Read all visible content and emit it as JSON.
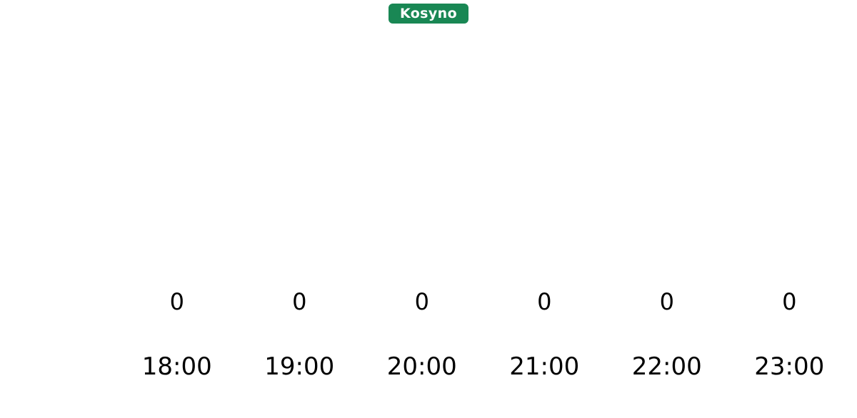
{
  "page": {
    "background": "#ffffff"
  },
  "legend": {
    "label": "Kosyno",
    "bg_color": "#198754",
    "text_color": "#ffffff",
    "position": "top-center"
  },
  "chart_data": {
    "type": "bar",
    "categories": [
      "18:00",
      "19:00",
      "20:00",
      "21:00",
      "22:00",
      "23:00"
    ],
    "series": [
      {
        "name": "Kosyno",
        "color": "#198754",
        "values": [
          0,
          0,
          0,
          0,
          0,
          0
        ]
      }
    ],
    "data_labels_shown": true,
    "legend_position": "top",
    "grid": false,
    "y_axis_visible": false,
    "x_axis_line_visible": false
  }
}
